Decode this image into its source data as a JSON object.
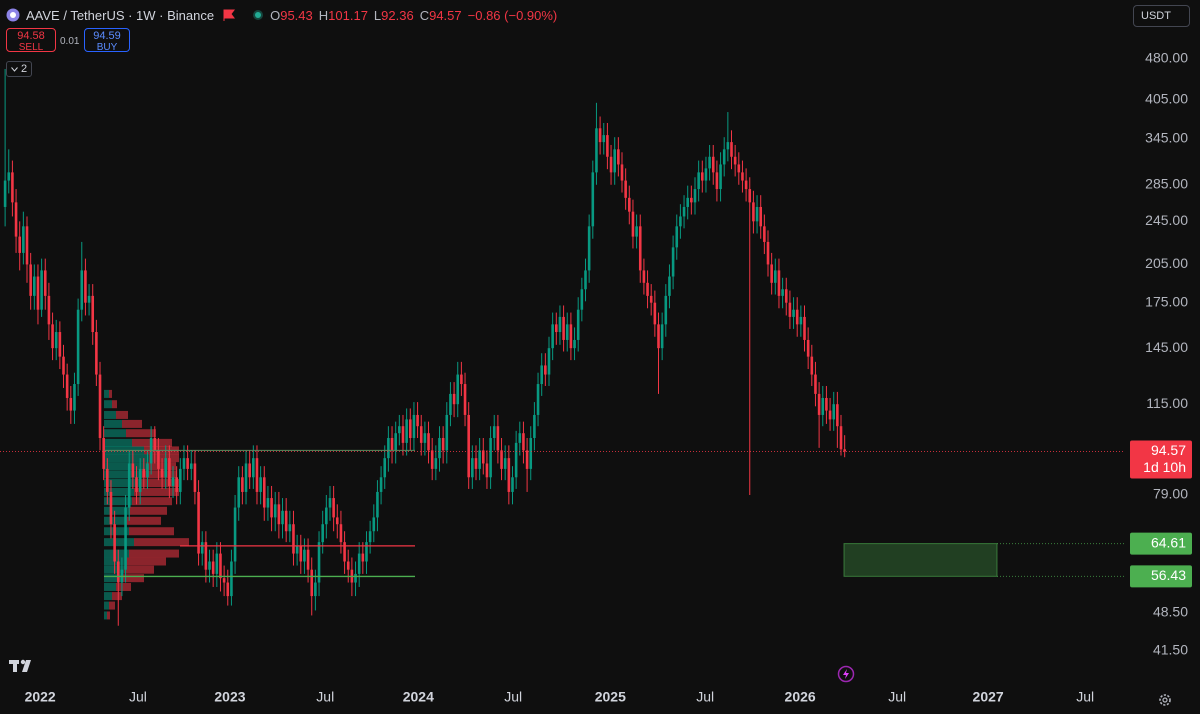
{
  "header": {
    "symbol": "AAVE / TetherUS · 1W · Binance",
    "ohlc_labels": [
      "O",
      "H",
      "L",
      "C"
    ],
    "change": "−0.86 (−0.90%)",
    "sell": 94.58,
    "sell_label": "SELL",
    "spread": 0.01,
    "buy": 94.59,
    "buy_label": "BUY",
    "indicators": 2,
    "currency": "USDT"
  },
  "chart_data": {
    "type": "candlestick",
    "log_scale": true,
    "grid": false,
    "up_color": "#089981",
    "down_color": "#f23645",
    "candles": {
      "open": [
        260,
        290,
        300,
        265,
        230,
        215,
        240,
        205,
        180,
        195,
        170,
        200,
        180,
        160,
        145,
        155,
        140,
        130,
        118,
        112,
        125,
        170,
        200,
        175,
        180,
        155,
        130,
        100,
        88,
        80,
        70,
        60,
        55,
        58,
        75,
        90,
        85,
        80,
        88,
        85,
        90,
        100,
        95,
        88,
        85,
        92,
        82,
        85,
        80,
        88,
        92,
        88,
        90,
        80,
        62,
        65,
        58,
        60,
        57,
        62,
        56,
        55,
        52,
        60,
        75,
        85,
        80,
        90,
        85,
        92,
        80,
        85,
        75,
        78,
        72,
        76,
        70,
        74,
        68,
        70,
        62,
        64,
        60,
        63,
        58,
        52,
        55,
        65,
        70,
        75,
        78,
        72,
        70,
        65,
        60,
        58,
        55,
        57,
        62,
        60,
        65,
        68,
        72,
        80,
        85,
        92,
        100,
        95,
        102,
        105,
        98,
        108,
        100,
        110,
        105,
        98,
        102,
        95,
        88,
        92,
        100,
        95,
        110,
        120,
        115,
        130,
        125,
        110,
        85,
        92,
        88,
        95,
        90,
        85,
        100,
        105,
        95,
        88,
        92,
        80,
        85,
        98,
        102,
        95,
        88,
        100,
        110,
        125,
        135,
        130,
        145,
        160,
        155,
        165,
        150,
        160,
        145,
        150,
        170,
        185,
        200,
        240,
        300,
        360,
        340,
        350,
        320,
        300,
        330,
        310,
        290,
        270,
        255,
        230,
        240,
        200,
        190,
        180,
        175,
        160,
        145,
        160,
        180,
        195,
        220,
        240,
        250,
        260,
        270,
        265,
        280,
        300,
        290,
        305,
        320,
        300,
        280,
        310,
        330,
        340,
        320,
        310,
        300,
        290,
        280,
        265,
        245,
        260,
        240,
        225,
        205,
        190,
        200,
        180,
        185,
        175,
        165,
        170,
        160,
        165,
        150,
        140,
        130,
        120,
        110,
        118,
        112,
        108,
        115,
        105,
        95.43
      ],
      "high": [
        460,
        330,
        315,
        280,
        245,
        255,
        250,
        215,
        205,
        205,
        210,
        210,
        190,
        168,
        163,
        162,
        147,
        136,
        124,
        131,
        178,
        225,
        210,
        189,
        189,
        163,
        137,
        105,
        92,
        84,
        74,
        63,
        61,
        79,
        95,
        95,
        89,
        92,
        92,
        95,
        105,
        105,
        100,
        92,
        97,
        97,
        89,
        89,
        92,
        97,
        97,
        95,
        95,
        84,
        68,
        68,
        63,
        63,
        65,
        65,
        59,
        58,
        63,
        79,
        89,
        89,
        95,
        95,
        97,
        97,
        89,
        89,
        82,
        82,
        80,
        80,
        78,
        78,
        74,
        74,
        67,
        67,
        66,
        66,
        61,
        58,
        68,
        74,
        79,
        82,
        82,
        76,
        74,
        68,
        63,
        61,
        60,
        65,
        65,
        68,
        71,
        76,
        84,
        89,
        97,
        105,
        105,
        107,
        110,
        110,
        113,
        113,
        116,
        116,
        110,
        107,
        107,
        100,
        97,
        105,
        105,
        116,
        126,
        126,
        137,
        137,
        131,
        116,
        97,
        97,
        100,
        100,
        95,
        105,
        110,
        110,
        100,
        97,
        97,
        89,
        103,
        107,
        107,
        100,
        105,
        116,
        131,
        142,
        142,
        152,
        168,
        168,
        173,
        173,
        168,
        168,
        158,
        179,
        194,
        210,
        252,
        315,
        400,
        378,
        368,
        368,
        336,
        347,
        347,
        326,
        305,
        284,
        268,
        252,
        252,
        210,
        200,
        189,
        184,
        168,
        168,
        189,
        205,
        231,
        252,
        263,
        273,
        284,
        284,
        294,
        315,
        315,
        320,
        336,
        336,
        315,
        326,
        347,
        385,
        357,
        336,
        326,
        315,
        305,
        294,
        278,
        273,
        273,
        252,
        236,
        215,
        210,
        210,
        194,
        194,
        184,
        179,
        179,
        173,
        173,
        158,
        147,
        137,
        126,
        124,
        124,
        118,
        121,
        121,
        110,
        101.17
      ],
      "low": [
        240,
        275,
        250,
        215,
        200,
        205,
        190,
        170,
        170,
        160,
        165,
        170,
        150,
        138,
        138,
        133,
        123,
        112,
        106,
        106,
        119,
        162,
        166,
        166,
        147,
        124,
        95,
        84,
        76,
        66,
        57,
        46,
        52,
        55,
        71,
        81,
        76,
        76,
        81,
        81,
        86,
        90,
        84,
        81,
        81,
        78,
        78,
        76,
        76,
        84,
        84,
        84,
        76,
        59,
        59,
        55,
        55,
        54,
        54,
        53,
        52,
        50,
        50,
        57,
        71,
        76,
        76,
        81,
        81,
        76,
        76,
        71,
        71,
        68,
        68,
        66,
        66,
        65,
        65,
        59,
        59,
        57,
        57,
        55,
        48,
        49,
        52,
        62,
        66,
        71,
        68,
        66,
        62,
        57,
        55,
        52,
        52,
        54,
        57,
        57,
        62,
        65,
        68,
        76,
        81,
        87,
        90,
        90,
        97,
        93,
        93,
        95,
        95,
        100,
        93,
        93,
        90,
        84,
        84,
        87,
        90,
        90,
        105,
        109,
        109,
        119,
        105,
        81,
        81,
        84,
        84,
        86,
        81,
        81,
        95,
        90,
        84,
        84,
        76,
        76,
        81,
        93,
        90,
        80,
        84,
        95,
        105,
        119,
        124,
        124,
        138,
        147,
        147,
        143,
        143,
        138,
        138,
        143,
        162,
        176,
        190,
        228,
        285,
        323,
        323,
        304,
        285,
        285,
        295,
        276,
        257,
        242,
        219,
        219,
        190,
        181,
        171,
        166,
        152,
        120,
        138,
        152,
        171,
        185,
        209,
        228,
        238,
        247,
        252,
        252,
        266,
        276,
        276,
        290,
        285,
        266,
        266,
        295,
        314,
        304,
        295,
        285,
        276,
        266,
        79,
        233,
        233,
        228,
        214,
        195,
        181,
        181,
        171,
        171,
        166,
        157,
        157,
        152,
        152,
        143,
        133,
        124,
        114,
        96,
        105,
        106,
        103,
        103,
        96,
        93,
        92.36
      ],
      "close": [
        290,
        300,
        265,
        230,
        215,
        240,
        205,
        180,
        195,
        170,
        200,
        180,
        160,
        145,
        155,
        140,
        130,
        118,
        112,
        125,
        170,
        200,
        175,
        180,
        155,
        130,
        100,
        88,
        80,
        70,
        60,
        55,
        58,
        75,
        90,
        85,
        80,
        88,
        85,
        90,
        100,
        95,
        88,
        85,
        92,
        82,
        85,
        80,
        88,
        92,
        88,
        90,
        80,
        62,
        65,
        58,
        60,
        57,
        62,
        56,
        55,
        52,
        60,
        75,
        85,
        80,
        90,
        85,
        92,
        80,
        85,
        75,
        78,
        72,
        76,
        70,
        74,
        68,
        70,
        62,
        64,
        60,
        63,
        58,
        52,
        55,
        65,
        70,
        75,
        78,
        72,
        70,
        65,
        60,
        58,
        55,
        57,
        62,
        60,
        65,
        68,
        72,
        80,
        85,
        92,
        100,
        95,
        102,
        105,
        98,
        108,
        100,
        110,
        105,
        98,
        102,
        95,
        88,
        92,
        100,
        95,
        110,
        120,
        115,
        130,
        125,
        110,
        85,
        92,
        88,
        95,
        90,
        85,
        100,
        105,
        95,
        88,
        92,
        80,
        85,
        98,
        102,
        95,
        88,
        100,
        110,
        125,
        135,
        130,
        145,
        160,
        155,
        165,
        150,
        160,
        145,
        150,
        170,
        185,
        200,
        240,
        300,
        360,
        340,
        350,
        320,
        300,
        330,
        310,
        290,
        270,
        255,
        230,
        240,
        200,
        190,
        180,
        175,
        160,
        145,
        160,
        180,
        195,
        220,
        240,
        250,
        260,
        270,
        265,
        280,
        300,
        290,
        305,
        320,
        300,
        280,
        310,
        330,
        340,
        320,
        310,
        300,
        290,
        280,
        265,
        245,
        260,
        240,
        225,
        205,
        190,
        200,
        180,
        185,
        175,
        165,
        170,
        160,
        165,
        150,
        140,
        130,
        120,
        110,
        118,
        112,
        108,
        115,
        105,
        95.43,
        94.57
      ]
    },
    "ylim": [
      36,
      612
    ],
    "yticks": [
      {
        "value": 41.5,
        "label": "41.50"
      },
      {
        "value": 48.5,
        "label": "48.50"
      },
      {
        "value": 79,
        "label": "79.00"
      },
      {
        "value": 115,
        "label": "115.00"
      },
      {
        "value": 145,
        "label": "145.00"
      },
      {
        "value": 175,
        "label": "175.00"
      },
      {
        "value": 205,
        "label": "205.00"
      },
      {
        "value": 245,
        "label": "245.00"
      },
      {
        "value": 285,
        "label": "285.00"
      },
      {
        "value": 345,
        "label": "345.00"
      },
      {
        "value": 405,
        "label": "405.00"
      },
      {
        "value": 480,
        "label": "480.00"
      }
    ],
    "xlim": [
      -1.4,
      306.8
    ],
    "xticks": [
      {
        "value": 9.6,
        "label": "2022"
      },
      {
        "value": 36.4,
        "label": "Jul"
      },
      {
        "value": 61.6,
        "label": "2023"
      },
      {
        "value": 87.7,
        "label": "Jul"
      },
      {
        "value": 113.2,
        "label": "2024"
      },
      {
        "value": 139.2,
        "label": "Jul"
      },
      {
        "value": 165.8,
        "label": "2025"
      },
      {
        "value": 191.8,
        "label": "Jul"
      },
      {
        "value": 217.8,
        "label": "2026"
      },
      {
        "value": 244.4,
        "label": "Jul"
      },
      {
        "value": 269.3,
        "label": "2027"
      },
      {
        "value": 295.9,
        "label": "Jul"
      }
    ],
    "countdown": "1d 10h",
    "volume_profile": {
      "prices": [
        120,
        115,
        110,
        106,
        102,
        98,
        95,
        92,
        89,
        86,
        83,
        80,
        77,
        74,
        71,
        68,
        65,
        62,
        60,
        58,
        56,
        54,
        52,
        50,
        48
      ],
      "buy": [
        5,
        8,
        12,
        18,
        22,
        28,
        40,
        45,
        42,
        38,
        35,
        30,
        28,
        25,
        22,
        25,
        30,
        25,
        22,
        20,
        18,
        12,
        8,
        5,
        3
      ],
      "sell": [
        3,
        5,
        12,
        20,
        30,
        40,
        35,
        30,
        30,
        35,
        40,
        45,
        40,
        38,
        35,
        45,
        55,
        50,
        40,
        30,
        22,
        15,
        10,
        6,
        3
      ]
    },
    "levels": {
      "value_area_high": 95,
      "poc": 64,
      "value_area_low": 56.4
    },
    "zone": {
      "top": 64.61,
      "bottom": 56.43,
      "color": "#4caf50"
    }
  }
}
